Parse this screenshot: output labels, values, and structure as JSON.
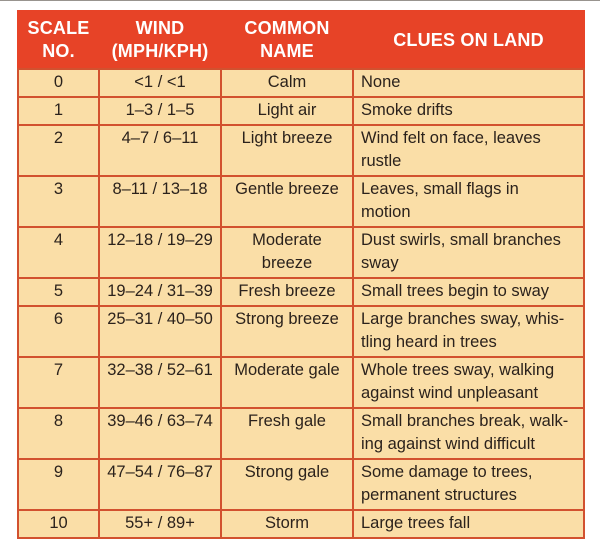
{
  "colors": {
    "header_bg": "#e74327",
    "header_text": "#ffffff",
    "cell_bg": "#fadea7",
    "grid_border": "#d2512f",
    "body_text": "#2b221c",
    "top_rule": "#98948f"
  },
  "table": {
    "headers": {
      "scale": "SCALE\nNO.",
      "wind": "WIND\n(MPH/KPH)",
      "name": "COMMON\nNAME",
      "clues": "CLUES ON LAND"
    },
    "rows": [
      {
        "scale": "0",
        "wind": "<1 / <1",
        "name": "Calm",
        "clues": "None"
      },
      {
        "scale": "1",
        "wind": "1–3 / 1–5",
        "name": "Light air",
        "clues": "Smoke drifts"
      },
      {
        "scale": "2",
        "wind": "4–7 / 6–11",
        "name": "Light breeze",
        "clues": "Wind felt on face, leaves\nrustle"
      },
      {
        "scale": "3",
        "wind": "8–11 / 13–18",
        "name": "Gentle breeze",
        "clues": "Leaves, small flags in\nmotion"
      },
      {
        "scale": "4",
        "wind": "12–18 / 19–29",
        "name": "Moderate\nbreeze",
        "clues": "Dust swirls, small branches\nsway"
      },
      {
        "scale": "5",
        "wind": "19–24 / 31–39",
        "name": "Fresh breeze",
        "clues": "Small trees begin to sway"
      },
      {
        "scale": "6",
        "wind": "25–31 / 40–50",
        "name": "Strong breeze",
        "clues": "Large branches sway, whis-\ntling heard in trees"
      },
      {
        "scale": "7",
        "wind": "32–38 / 52–61",
        "name": "Moderate gale",
        "clues": "Whole trees sway, walking\nagainst wind unpleasant"
      },
      {
        "scale": "8",
        "wind": "39–46 / 63–74",
        "name": "Fresh gale",
        "clues": "Small branches break, walk-\ning against wind difficult"
      },
      {
        "scale": "9",
        "wind": "47–54 / 76–87",
        "name": "Strong gale",
        "clues": "Some damage to trees,\npermanent structures"
      },
      {
        "scale": "10",
        "wind": "55+ / 89+",
        "name": "Storm",
        "clues": "Large trees fall"
      }
    ]
  }
}
